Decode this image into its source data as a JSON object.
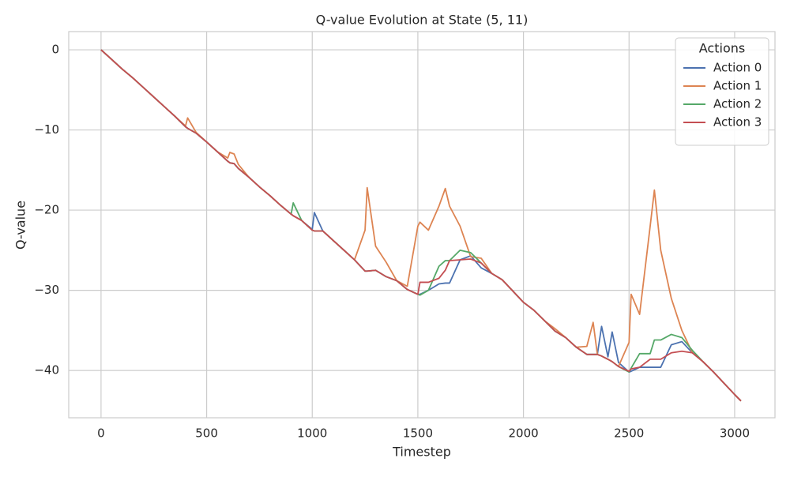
{
  "chart_data": {
    "type": "line",
    "title": "Q-value Evolution at State (5, 11)",
    "x_label": "Timestep",
    "y_label": "Q-value",
    "legend_title": "Actions",
    "legend_position": "upper right",
    "grid": true,
    "xlim": [
      -153,
      3191
    ],
    "ylim": [
      -45.9,
      2.27
    ],
    "xticks": [
      0,
      500,
      1000,
      1500,
      2000,
      2500,
      3000
    ],
    "yticks": [
      {
        "value": 0,
        "label": "0"
      },
      {
        "value": -10,
        "label": "−10"
      },
      {
        "value": -20,
        "label": "−20"
      },
      {
        "value": -30,
        "label": "−30"
      },
      {
        "value": -40,
        "label": "−40"
      }
    ],
    "x": [
      0,
      50,
      100,
      150,
      200,
      250,
      300,
      350,
      400,
      410,
      450,
      500,
      550,
      600,
      610,
      630,
      650,
      700,
      750,
      800,
      850,
      900,
      910,
      950,
      1000,
      1010,
      1050,
      1100,
      1150,
      1200,
      1250,
      1260,
      1300,
      1350,
      1400,
      1450,
      1500,
      1510,
      1550,
      1600,
      1630,
      1650,
      1700,
      1750,
      1800,
      1850,
      1900,
      1950,
      2000,
      2050,
      2100,
      2150,
      2200,
      2250,
      2300,
      2330,
      2350,
      2370,
      2400,
      2420,
      2450,
      2500,
      2510,
      2550,
      2600,
      2620,
      2650,
      2700,
      2750,
      2800,
      2850,
      2900,
      2950,
      3000,
      3030
    ],
    "series": [
      {
        "name": "Action 0",
        "color": "#4c72b0",
        "values": [
          0,
          -1.2,
          -2.4,
          -3.5,
          -4.7,
          -5.9,
          -7.1,
          -8.3,
          -9.6,
          -9.8,
          -10.4,
          -11.5,
          -12.7,
          -13.9,
          -14.1,
          -14.2,
          -14.8,
          -15.9,
          -17.1,
          -18.2,
          -19.4,
          -20.5,
          -20.7,
          -21.3,
          -22.4,
          -20.3,
          -22.6,
          -23.8,
          -25.0,
          -26.2,
          -27.6,
          -27.6,
          -27.5,
          -28.3,
          -28.8,
          -29.9,
          -30.5,
          -30.5,
          -30.0,
          -29.2,
          -29.1,
          -29.1,
          -26.2,
          -25.7,
          -27.2,
          -27.9,
          -28.7,
          -30.1,
          -31.5,
          -32.5,
          -33.8,
          -35.1,
          -35.9,
          -37.1,
          -38.0,
          -38.0,
          -38.0,
          -34.5,
          -38.3,
          -35.2,
          -39.0,
          -40.2,
          -40.1,
          -39.6,
          -39.6,
          -39.6,
          -39.6,
          -36.8,
          -36.4,
          -37.8,
          -38.9,
          -40.2,
          -41.6,
          -43.0,
          -43.8
        ]
      },
      {
        "name": "Action 1",
        "color": "#dd8452",
        "values": [
          0,
          -1.2,
          -2.4,
          -3.5,
          -4.7,
          -5.9,
          -7.1,
          -8.3,
          -9.5,
          -8.5,
          -10.3,
          -11.5,
          -12.7,
          -13.5,
          -12.8,
          -13.0,
          -14.3,
          -15.9,
          -17.1,
          -18.2,
          -19.4,
          -20.5,
          -20.7,
          -21.3,
          -22.5,
          -22.6,
          -22.6,
          -23.8,
          -25.0,
          -26.2,
          -22.5,
          -17.2,
          -24.5,
          -26.5,
          -28.8,
          -29.5,
          -22.0,
          -21.5,
          -22.5,
          -19.5,
          -17.3,
          -19.5,
          -22.0,
          -25.8,
          -26.0,
          -27.9,
          -28.7,
          -30.1,
          -31.5,
          -32.5,
          -33.8,
          -34.8,
          -35.9,
          -37.1,
          -37.0,
          -34.0,
          -38.0,
          -38.2,
          -38.6,
          -38.9,
          -39.5,
          -36.5,
          -30.5,
          -33.0,
          -22.0,
          -17.5,
          -25.0,
          -31.0,
          -35.0,
          -37.8,
          -38.9,
          -40.2,
          -41.6,
          -43.0,
          -43.8
        ]
      },
      {
        "name": "Action 2",
        "color": "#55a868",
        "values": [
          0,
          -1.2,
          -2.4,
          -3.5,
          -4.7,
          -5.9,
          -7.1,
          -8.3,
          -9.6,
          -9.8,
          -10.4,
          -11.5,
          -12.7,
          -13.9,
          -14.1,
          -14.2,
          -14.8,
          -15.9,
          -17.1,
          -18.2,
          -19.4,
          -20.5,
          -19.1,
          -21.3,
          -22.5,
          -22.6,
          -22.6,
          -23.8,
          -25.0,
          -26.2,
          -27.6,
          -27.6,
          -27.5,
          -28.3,
          -28.8,
          -29.9,
          -30.5,
          -30.6,
          -30.0,
          -27.0,
          -26.3,
          -26.3,
          -25.0,
          -25.3,
          -26.6,
          -27.9,
          -28.7,
          -30.1,
          -31.5,
          -32.5,
          -33.8,
          -35.1,
          -35.9,
          -37.1,
          -38.0,
          -38.0,
          -38.0,
          -38.2,
          -38.6,
          -38.9,
          -39.5,
          -40.2,
          -39.7,
          -37.9,
          -37.9,
          -36.2,
          -36.2,
          -35.5,
          -35.9,
          -37.5,
          -38.9,
          -40.2,
          -41.6,
          -43.0,
          -43.8
        ]
      },
      {
        "name": "Action 3",
        "color": "#c44e52",
        "values": [
          0,
          -1.2,
          -2.4,
          -3.5,
          -4.7,
          -5.9,
          -7.1,
          -8.3,
          -9.6,
          -9.8,
          -10.4,
          -11.5,
          -12.7,
          -13.9,
          -14.1,
          -14.2,
          -14.8,
          -15.9,
          -17.1,
          -18.2,
          -19.4,
          -20.5,
          -20.7,
          -21.3,
          -22.5,
          -22.6,
          -22.6,
          -23.8,
          -25.0,
          -26.2,
          -27.6,
          -27.6,
          -27.5,
          -28.3,
          -28.8,
          -29.9,
          -30.5,
          -29.0,
          -29.0,
          -28.5,
          -27.5,
          -26.3,
          -26.2,
          -26.1,
          -26.6,
          -27.9,
          -28.7,
          -30.1,
          -31.5,
          -32.5,
          -33.8,
          -35.1,
          -35.9,
          -37.1,
          -38.0,
          -38.0,
          -38.0,
          -38.2,
          -38.6,
          -38.9,
          -39.5,
          -40.1,
          -39.8,
          -39.6,
          -38.6,
          -38.6,
          -38.6,
          -37.8,
          -37.6,
          -37.8,
          -38.9,
          -40.2,
          -41.6,
          -43.0,
          -43.8
        ]
      }
    ]
  }
}
